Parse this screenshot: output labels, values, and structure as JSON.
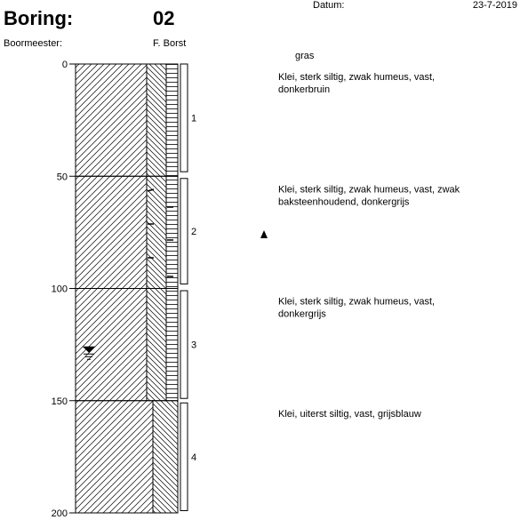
{
  "header": {
    "title_label": "Boring:",
    "title_value": "02",
    "driller_label": "Boormeester:",
    "driller": "F. Borst",
    "date_label": "Datum:",
    "date": "23-7-2019"
  },
  "depth_axis": {
    "lim": [
      0,
      200
    ],
    "ticks": [
      0,
      50,
      100,
      150,
      200
    ]
  },
  "surface_label": "gras",
  "layers": [
    {
      "top": 0,
      "bottom": 50,
      "silt_band": true,
      "description": [
        "Klei, sterk siltig, zwak humeus, vast,",
        "donkerbruin"
      ]
    },
    {
      "top": 50,
      "bottom": 100,
      "silt_band": true,
      "description": [
        "Klei, sterk siltig, zwak humeus, vast, zwak",
        "baksteenhoudend, donkergrijs"
      ]
    },
    {
      "top": 100,
      "bottom": 150,
      "silt_band": true,
      "description": [
        "Klei, sterk siltig, zwak humeus, vast,",
        "donkergrijs"
      ]
    },
    {
      "top": 150,
      "bottom": 200,
      "silt_band": false,
      "description": [
        "Klei, uiterst siltig, vast, grijsblauw"
      ]
    }
  ],
  "samples": [
    {
      "label": "1",
      "top": 0,
      "bottom": 48
    },
    {
      "label": "2",
      "top": 51,
      "bottom": 98
    },
    {
      "label": "3",
      "top": 101,
      "bottom": 149
    },
    {
      "label": "4",
      "top": 151,
      "bottom": 199
    }
  ],
  "groundwater_depth": 128
}
